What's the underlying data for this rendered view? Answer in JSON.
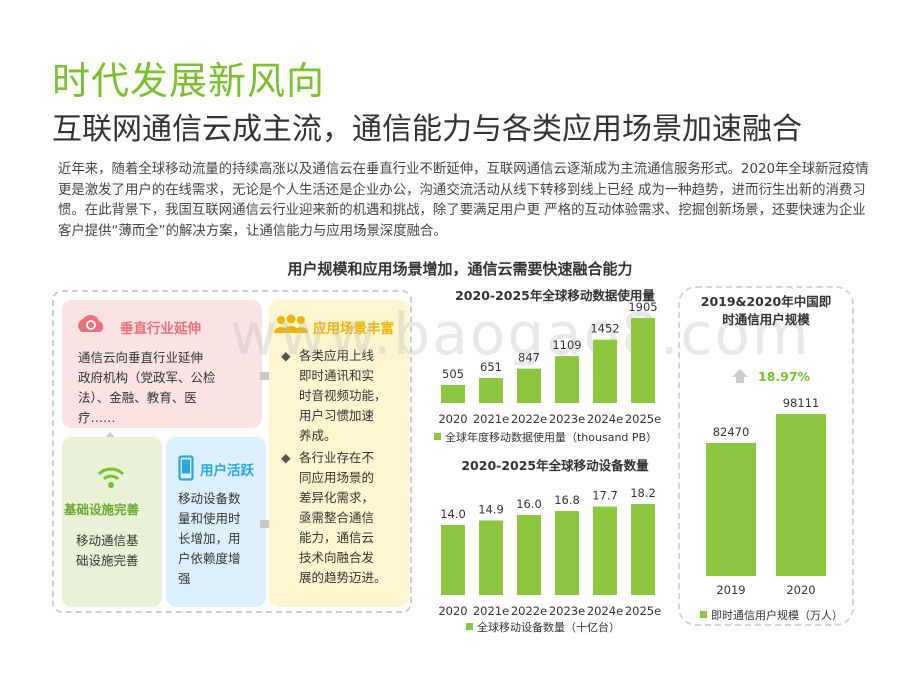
{
  "title": "时代发展新风向",
  "subtitle": "互联网通信云成主流，通信能力与各类应用场景加速融合",
  "intro": "近年来，随着全球移动流量的持续高涨以及通信云在垂直行业不断延伸，互联网通信云逐渐成为主流通信服务形式。2020年全球新冠疫情更是激发了用户的在线需求，无论是个人生活还是企业办公，沟通交流活动从线下转移到线上已经 成为一种趋势，进而衍生出新的消费习惯。在此背景下，我国互联网通信云行业迎来新的机遇和挑战，除了要满足用户更 严格的互动体验需求、挖掘创新场景，还要快速为企业客户提供“薄而全”的解决方案，让通信能力与应用场景深度融合。",
  "section_title": "用户规模和应用场景增加，通信云需要快速融合能力",
  "watermark": "www.baogao8.com",
  "diagram": {
    "vertical": {
      "title": "垂直行业延伸",
      "lines": [
        "通信云向垂直行业延伸",
        "政府机构（党政军、公检",
        "法）、金融、教育、医",
        "疗……"
      ]
    },
    "infra": {
      "title": "基础设施完善",
      "lines": [
        "移动通信基",
        "础设施完善"
      ]
    },
    "user": {
      "title": "用户活跃",
      "lines": [
        "移动设备数",
        "量和使用时",
        "长增加，用",
        "户依赖度增",
        "强"
      ]
    },
    "scene": {
      "title": "应用场景丰富",
      "bullet1": [
        "各类应用上线",
        "即时通讯和实",
        "时音视频功能，",
        "用户习惯加速",
        "养成。"
      ],
      "bullet2": [
        "各行业存在不",
        "同应用场景的",
        "差异化需求，",
        "亟需整合通信",
        "能力，通信云",
        "技术向融合发",
        "展的趋势迈进。"
      ]
    },
    "colors": {
      "vertical": "#e9727c",
      "infra": "#7cbf2f",
      "user": "#2aa7e0",
      "scene": "#f0b400"
    }
  },
  "chart_data": [
    {
      "type": "bar",
      "title": "2020-2025年全球移动数据使用量",
      "categories": [
        "2020",
        "2021e",
        "2022e",
        "2023e",
        "2024e",
        "2025e"
      ],
      "values": [
        505,
        651,
        847,
        1109,
        1452,
        1905
      ],
      "value_labels": [
        "505",
        "651",
        "847",
        "1109",
        "1452",
        "1905"
      ],
      "legend": "全球年度移动数据使用量（thousand PB）",
      "color": "#8dc63f",
      "ylim": [
        0,
        1905
      ]
    },
    {
      "type": "bar",
      "title": "2020-2025年全球移动设备数量",
      "categories": [
        "2020",
        "2021e",
        "2022e",
        "2023e",
        "2024e",
        "2025e"
      ],
      "values": [
        14.0,
        14.9,
        16.0,
        16.8,
        17.7,
        18.2
      ],
      "value_labels": [
        "14.0",
        "14.9",
        "16.0",
        "16.8",
        "17.7",
        "18.2"
      ],
      "legend": "全球移动设备数量（十亿台）",
      "color": "#8dc63f",
      "ylim": [
        0,
        18.2
      ]
    },
    {
      "type": "bar",
      "title": "2019&2020年中国即时通信用户规模",
      "title_lines": [
        "2019&2020年中国即",
        "时通信用户规模"
      ],
      "categories": [
        "2019",
        "2020"
      ],
      "values": [
        82470,
        98111
      ],
      "value_labels": [
        "82470",
        "98111"
      ],
      "growth": "18.97%",
      "legend": "即时通信用户规模（万人）",
      "color": "#8dc63f",
      "growth_color": "#7cbf2f",
      "ylim": [
        0,
        98111
      ]
    }
  ]
}
